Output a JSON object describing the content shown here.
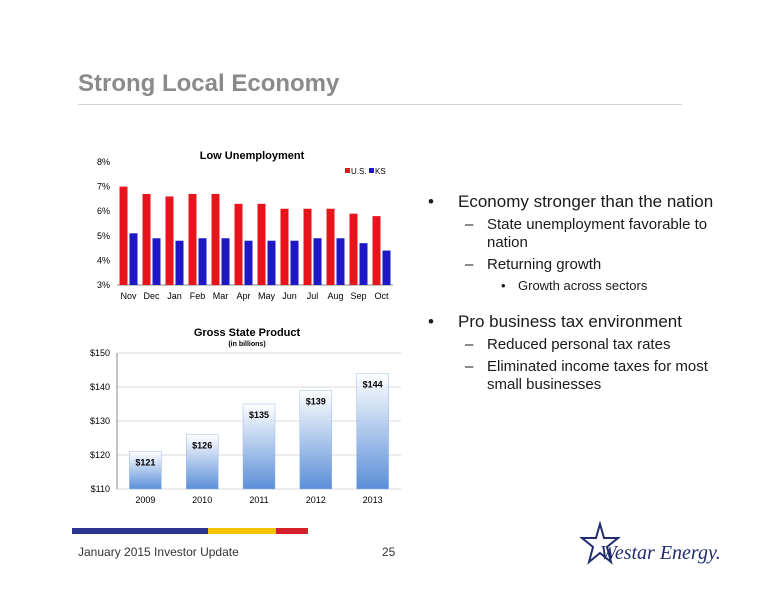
{
  "slide": {
    "title": "Strong Local Economy",
    "footer": "January 2015 Investor Update",
    "page_number": "25",
    "logo_text": "Westar Energy."
  },
  "bullets": [
    {
      "level": 1,
      "text": "Economy stronger than the nation"
    },
    {
      "level": 2,
      "text": "State unemployment favorable to nation"
    },
    {
      "level": 2,
      "text": "Returning growth"
    },
    {
      "level": 3,
      "text": "Growth across sectors"
    },
    {
      "level": 0,
      "text": ""
    },
    {
      "level": 1,
      "text": "Pro business tax environment"
    },
    {
      "level": 2,
      "text": "Reduced personal tax rates"
    },
    {
      "level": 2,
      "text": "Eliminated income taxes for most small businesses"
    }
  ],
  "colors": {
    "title": "#8a8a8a",
    "us_bar": "#e8141b",
    "ks_bar": "#1d18c4",
    "gsp_bar": "#5b8fd8",
    "stripe_blue": "#2a3590",
    "stripe_yellow": "#f5c400",
    "stripe_red": "#d4202a"
  },
  "chart_data": [
    {
      "type": "bar",
      "title": "Low Unemployment",
      "categories": [
        "Nov",
        "Dec",
        "Jan",
        "Feb",
        "Mar",
        "Apr",
        "May",
        "Jun",
        "Jul",
        "Aug",
        "Sep",
        "Oct"
      ],
      "series": [
        {
          "name": "U.S.",
          "values": [
            7.0,
            6.7,
            6.6,
            6.7,
            6.7,
            6.3,
            6.3,
            6.1,
            6.1,
            6.1,
            5.9,
            5.8
          ]
        },
        {
          "name": "KS",
          "values": [
            5.1,
            4.9,
            4.8,
            4.9,
            4.9,
            4.8,
            4.8,
            4.8,
            4.9,
            4.9,
            4.7,
            4.4
          ]
        }
      ],
      "yticks": [
        "3%",
        "4%",
        "5%",
        "6%",
        "7%",
        "8%"
      ],
      "ylim": [
        3,
        8
      ],
      "legend": "top-right",
      "grid": false
    },
    {
      "type": "bar",
      "title": "Gross State Product",
      "subtitle": "(in billions)",
      "categories": [
        "2009",
        "2010",
        "2011",
        "2012",
        "2013"
      ],
      "values": [
        121,
        126,
        135,
        139,
        144
      ],
      "data_labels": [
        "$121",
        "$126",
        "$135",
        "$139",
        "$144"
      ],
      "yticks": [
        "$110",
        "$120",
        "$130",
        "$140",
        "$150"
      ],
      "ylim": [
        110,
        150
      ],
      "grid": true
    }
  ]
}
